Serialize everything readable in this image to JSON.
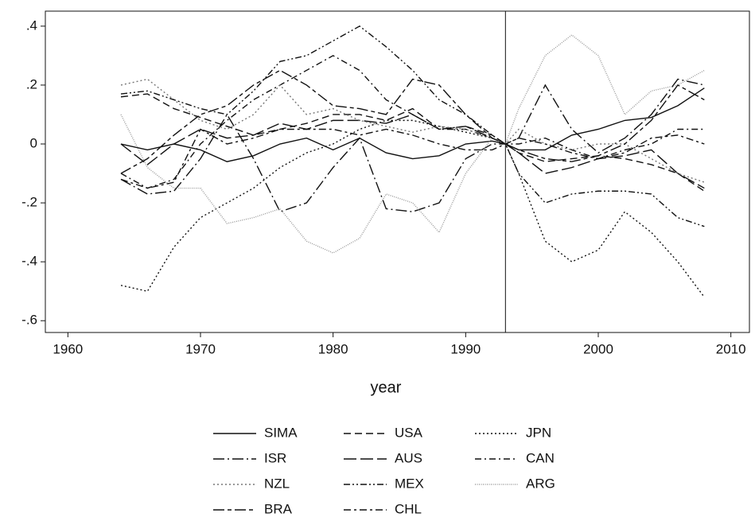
{
  "chart_data": {
    "type": "line",
    "x_label": "year",
    "x": [
      1964,
      1966,
      1968,
      1970,
      1972,
      1974,
      1976,
      1978,
      1980,
      1982,
      1984,
      1986,
      1988,
      1990,
      1992,
      1993,
      1994,
      1996,
      1998,
      2000,
      2002,
      2004,
      2006,
      2008
    ],
    "xlim": [
      1958.3,
      2011.4
    ],
    "xticks": [
      1960,
      1970,
      1980,
      1990,
      2000,
      2010
    ],
    "ylim": [
      -0.64,
      0.451
    ],
    "yticks": [
      {
        "value": -0.6,
        "label": "-.6"
      },
      {
        "value": -0.4,
        "label": "-.4"
      },
      {
        "value": -0.2,
        "label": "-.2"
      },
      0,
      {
        "value": 0.2,
        "label": ".2"
      },
      {
        "value": 0.4,
        "label": ".4"
      }
    ],
    "xline": 1993,
    "series": [
      {
        "name": "SIMA",
        "color": "#111111",
        "style": "solid",
        "values": [
          0.0,
          -0.02,
          0.0,
          -0.02,
          -0.06,
          -0.04,
          0.0,
          0.02,
          -0.02,
          0.02,
          -0.03,
          -0.05,
          -0.04,
          0.0,
          0.01,
          0,
          -0.02,
          -0.02,
          0.03,
          0.05,
          0.08,
          0.09,
          0.13,
          0.19
        ]
      },
      {
        "name": "USA",
        "color": "#111111",
        "style": "dash",
        "values": [
          0.16,
          0.17,
          0.12,
          0.09,
          0.06,
          0.03,
          0.05,
          0.07,
          0.1,
          0.1,
          0.08,
          0.12,
          0.05,
          0.06,
          0.03,
          0,
          -0.03,
          -0.06,
          -0.05,
          -0.04,
          -0.05,
          -0.07,
          -0.1,
          -0.16
        ]
      },
      {
        "name": "JPN",
        "color": "#111111",
        "style": "dot",
        "values": [
          -0.48,
          -0.5,
          -0.35,
          -0.25,
          -0.2,
          -0.15,
          -0.08,
          -0.03,
          0.0,
          0.05,
          0.08,
          0.08,
          0.06,
          0.04,
          0.02,
          0,
          -0.1,
          -0.33,
          -0.4,
          -0.36,
          -0.23,
          -0.3,
          -0.4,
          -0.52
        ]
      },
      {
        "name": "ISR",
        "color": "#111111",
        "style": "longdash-dot",
        "values": [
          -0.12,
          -0.17,
          -0.16,
          -0.05,
          0.1,
          -0.05,
          -0.23,
          -0.2,
          -0.08,
          0.02,
          -0.22,
          -0.23,
          -0.2,
          -0.05,
          0.0,
          0,
          0.02,
          0.2,
          0.05,
          -0.03,
          0.02,
          0.1,
          0.22,
          0.2
        ]
      },
      {
        "name": "AUS",
        "color": "#111111",
        "style": "longdash",
        "values": [
          0.0,
          -0.07,
          0.0,
          0.05,
          0.02,
          0.03,
          0.07,
          0.05,
          0.08,
          0.08,
          0.07,
          0.1,
          0.05,
          0.06,
          0.02,
          0,
          -0.03,
          -0.1,
          -0.08,
          -0.05,
          -0.04,
          -0.02,
          -0.1,
          -0.15
        ]
      },
      {
        "name": "CAN",
        "color": "#111111",
        "style": "dash-dot",
        "values": [
          -0.1,
          -0.15,
          -0.12,
          0.0,
          0.08,
          0.15,
          0.2,
          0.25,
          0.3,
          0.25,
          0.15,
          0.1,
          0.05,
          0.05,
          0.02,
          0,
          0.0,
          0.02,
          -0.02,
          -0.05,
          -0.02,
          0.0,
          0.05,
          0.05
        ]
      },
      {
        "name": "NZL",
        "color": "#777777",
        "style": "dot",
        "values": [
          0.2,
          0.22,
          0.15,
          0.08,
          0.05,
          0.1,
          0.2,
          0.1,
          0.12,
          0.08,
          0.06,
          0.04,
          0.06,
          0.05,
          0.02,
          0,
          0.05,
          0.0,
          -0.02,
          0.0,
          0.0,
          -0.05,
          -0.1,
          -0.13
        ]
      },
      {
        "name": "MEX",
        "color": "#111111",
        "style": "dash-dot-dot",
        "values": [
          0.17,
          0.18,
          0.15,
          0.12,
          0.1,
          0.18,
          0.28,
          0.3,
          0.35,
          0.4,
          0.33,
          0.25,
          0.15,
          0.1,
          0.03,
          0,
          -0.1,
          -0.2,
          -0.17,
          -0.16,
          -0.16,
          -0.17,
          -0.25,
          -0.28
        ]
      },
      {
        "name": "ARG",
        "color": "#999999",
        "style": "fine-dot",
        "values": [
          0.1,
          -0.08,
          -0.15,
          -0.15,
          -0.27,
          -0.25,
          -0.22,
          -0.33,
          -0.37,
          -0.32,
          -0.17,
          -0.2,
          -0.3,
          -0.1,
          0.02,
          0,
          0.12,
          0.3,
          0.37,
          0.3,
          0.1,
          0.18,
          0.2,
          0.25
        ]
      },
      {
        "name": "BRA",
        "color": "#111111",
        "style": "longdash-shortdash",
        "values": [
          -0.1,
          -0.05,
          0.03,
          0.1,
          0.13,
          0.2,
          0.25,
          0.2,
          0.13,
          0.12,
          0.1,
          0.22,
          0.2,
          0.1,
          0.02,
          0,
          -0.02,
          -0.05,
          -0.06,
          -0.04,
          0.0,
          0.08,
          0.2,
          0.15
        ]
      },
      {
        "name": "CHL",
        "color": "#111111",
        "style": "dash-shortdash",
        "values": [
          -0.12,
          -0.15,
          -0.13,
          0.05,
          0.0,
          0.02,
          0.05,
          0.05,
          0.05,
          0.03,
          0.05,
          0.03,
          0.0,
          -0.02,
          -0.02,
          0,
          0.02,
          0.0,
          -0.03,
          -0.05,
          -0.03,
          0.02,
          0.03,
          0.0
        ]
      }
    ]
  }
}
